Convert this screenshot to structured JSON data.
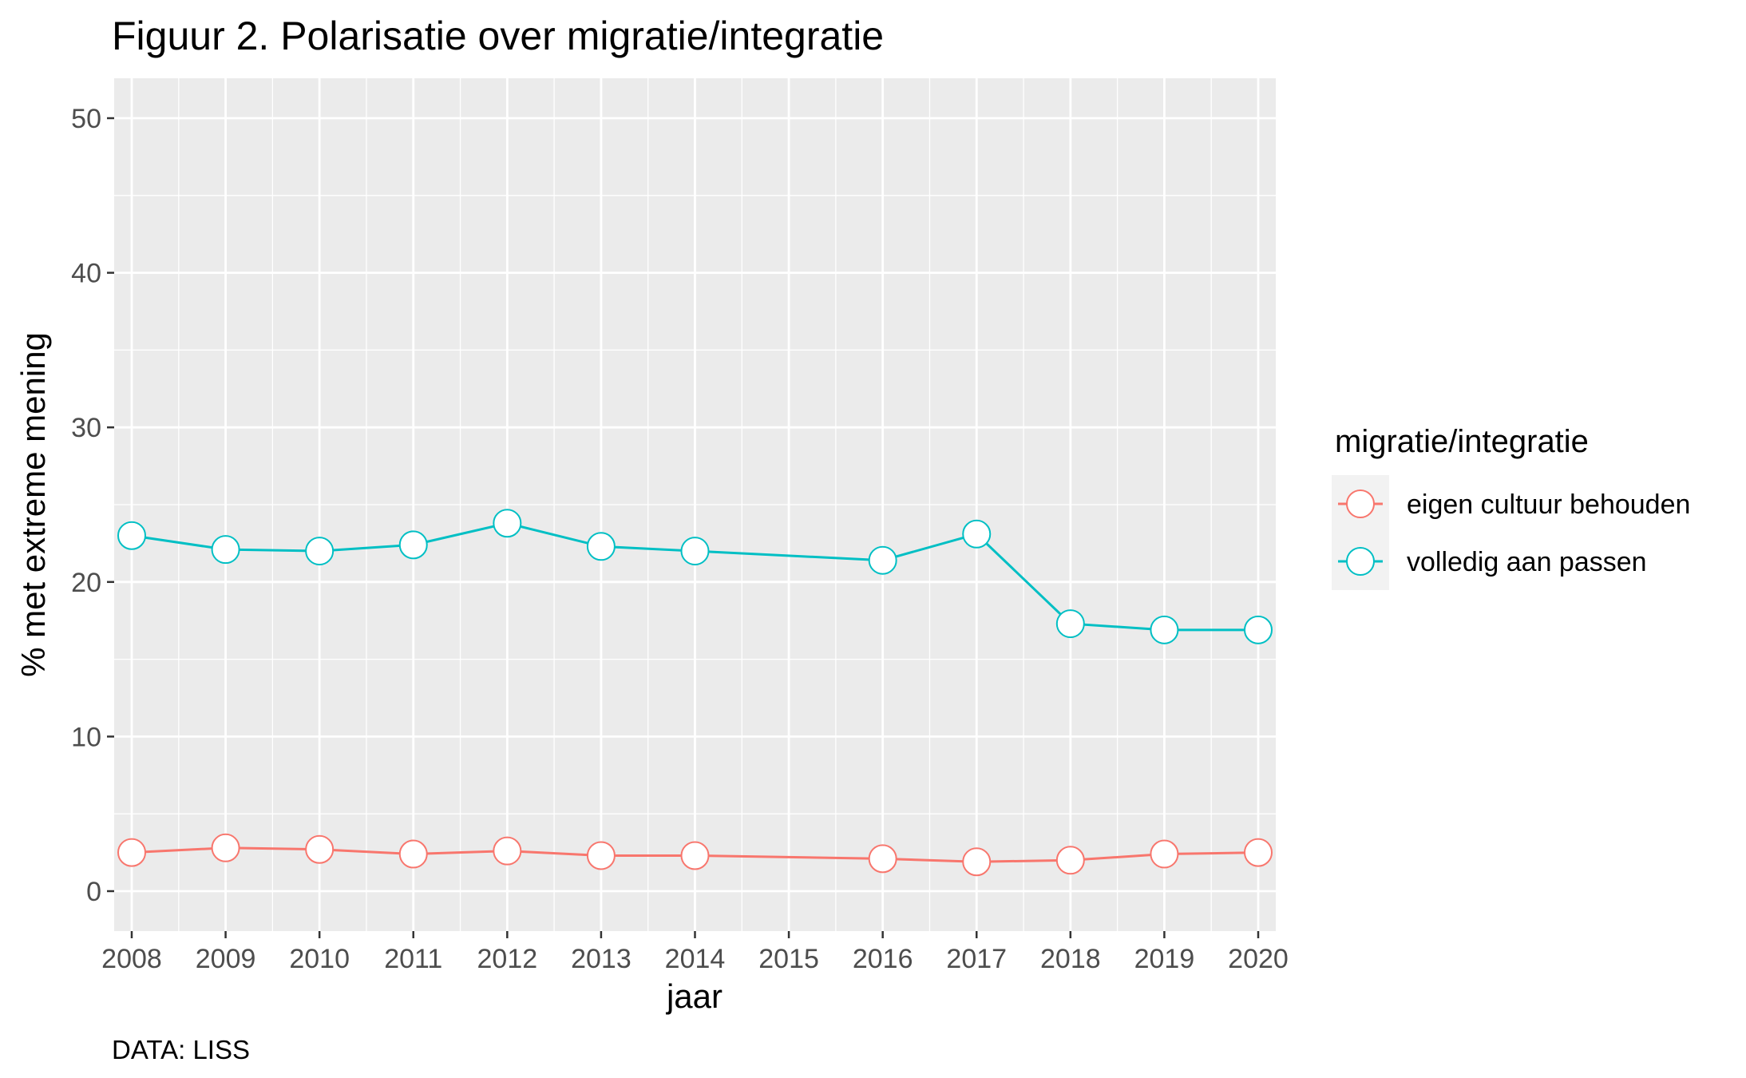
{
  "chart_data": {
    "type": "line",
    "title": "Figuur 2. Polarisatie over migratie/integratie",
    "xlabel": "jaar",
    "ylabel": "% met extreme mening",
    "caption": "DATA: LISS",
    "x_categories": [
      "2008",
      "2009",
      "2010",
      "2011",
      "2012",
      "2013",
      "2014",
      "2015",
      "2016",
      "2017",
      "2018",
      "2019",
      "2020"
    ],
    "ylim": [
      0,
      50
    ],
    "yticks": [
      0,
      10,
      20,
      30,
      40,
      50
    ],
    "grid": true,
    "legend": {
      "title": "migratie/integratie",
      "position": "right"
    },
    "series": [
      {
        "name": "eigen cultuur behouden",
        "color": "#F8766D",
        "x": [
          "2008",
          "2009",
          "2010",
          "2011",
          "2012",
          "2013",
          "2014",
          "2016",
          "2017",
          "2018",
          "2019",
          "2020"
        ],
        "values": [
          2.5,
          2.8,
          2.7,
          2.4,
          2.6,
          2.3,
          2.3,
          2.1,
          1.9,
          2.0,
          2.4,
          2.5
        ]
      },
      {
        "name": "volledig aan passen",
        "color": "#00BFC4",
        "x": [
          "2008",
          "2009",
          "2010",
          "2011",
          "2012",
          "2013",
          "2014",
          "2016",
          "2017",
          "2018",
          "2019",
          "2020"
        ],
        "values": [
          23.0,
          22.1,
          22.0,
          22.4,
          23.8,
          22.3,
          22.0,
          21.4,
          23.1,
          17.3,
          16.9,
          16.9
        ]
      }
    ]
  }
}
